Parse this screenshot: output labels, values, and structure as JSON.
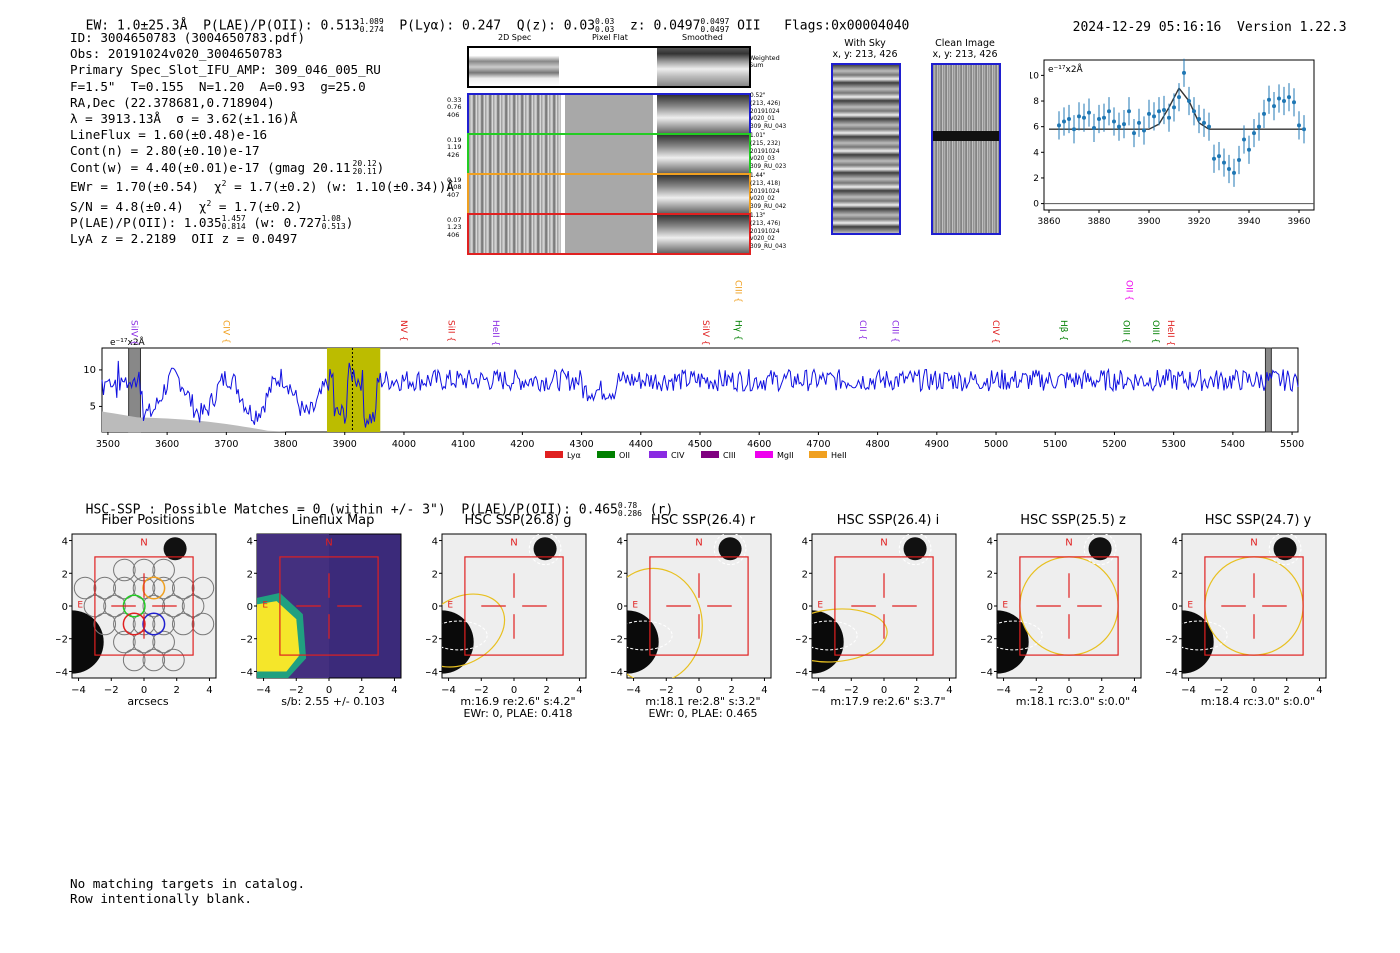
{
  "header": {
    "ew": "EW: 1.0±25.3Å",
    "plae_label": "P(LAE)/P(OII): 0.513",
    "plae_hi": "1.089",
    "plae_lo": "0.274",
    "plya": "P(Lyα): 0.247",
    "qz_label": "Q(z): 0.03",
    "qz_hi": "0.03",
    "qz_lo": "0.03",
    "z_label": "z: 0.0497",
    "z_hi": "0.0497",
    "z_lo": "0.0497",
    "z_line": "OII",
    "flags": "Flags:0x00004040",
    "datetime": "2024-12-29 05:16:16",
    "version": "Version 1.22.3"
  },
  "info": {
    "id": "ID: 3004650783 (3004650783.pdf)",
    "obs": "Obs: 20191024v020_3004650783",
    "primary": "Primary Spec_Slot_IFU_AMP: 309_046_005_RU",
    "params": "F=1.5\"  T=0.155  N=1.20  A=0.93  g=25.0",
    "radec": "RA,Dec (22.378681,0.718904)",
    "lambda": "λ = 3913.13Å  σ = 3.62(±1.16)Å",
    "lineflux": "LineFlux = 1.60(±0.48)e-16",
    "contn": "Cont(n) = 2.80(±0.10)e-17",
    "contw": "Cont(w) = 4.40(±0.01)e-17 (gmag 20.11",
    "gmag_hi": "20.12",
    "gmag_lo": "20.11",
    "ewr": "EWr = 1.70(±0.54)  χ² = 1.7(±0.2)  (w: 1.10(±0.34))Å",
    "ewr_a": "EWr = 1.70(±0.54)",
    "ewr_b": "χ",
    "ewr_c": "2",
    "ewr_d": "(w: 1.10(±0.34))Å",
    "sn": "S/N = 4.8(±0.4)",
    "chi2": "= 1.7(±0.2)",
    "plae": "P(LAE)/P(OII): 1.035",
    "plae_hi": "1.457",
    "plae_lo": "0.814",
    "plae_w": "(w: 0.727",
    "plae_w_hi": "1.08",
    "plae_w_lo": "0.513",
    "lya_z": "LyA z = 2.2189  OII z = 0.0497"
  },
  "cutouts": {
    "col_titles": [
      "2D Spec",
      "Pixel Flat",
      "Smoothed"
    ],
    "weighted_label": "Weighted Sum",
    "rows": [
      {
        "left": [
          "0.33",
          "0.76",
          "406"
        ],
        "right": [
          "0.52\"",
          "(213, 426)",
          "20191024",
          "v020_01",
          "309_RU_043"
        ],
        "color": "#1f1fd0"
      },
      {
        "left": [
          "0.19",
          "1.19",
          "426"
        ],
        "right": [
          "1.01\"",
          "(215, 232)",
          "20191024",
          "v020_03",
          "309_RU_023"
        ],
        "color": "#22cc22"
      },
      {
        "left": [
          "0.19",
          "1.08",
          "407"
        ],
        "right": [
          "1.44\"",
          "(213, 418)",
          "20191024",
          "v020_02",
          "309_RU_042"
        ],
        "color": "#f0a020"
      },
      {
        "left": [
          "0.07",
          "1.23",
          "406"
        ],
        "right": [
          "1.13\"",
          "(213, 476)",
          "20191024",
          "v020_02",
          "309_RU_043"
        ],
        "color": "#e02020"
      }
    ],
    "with_sky_title": "With Sky",
    "with_sky_xy": "x, y: 213, 426",
    "clean_title": "Clean Image",
    "clean_xy": "x, y: 213, 426"
  },
  "zoom_chart": {
    "ylabel": "e⁻¹⁷x2Å",
    "yticks": [
      "0",
      "2",
      "4",
      "6",
      "8",
      "10"
    ],
    "xticks": [
      "3860",
      "3880",
      "3900",
      "3920",
      "3940",
      "3960"
    ]
  },
  "full_spectrum": {
    "ylabel": "e⁻¹⁷x2Å",
    "yticks": [
      "5",
      "10"
    ],
    "xticks": [
      "3500",
      "3600",
      "3700",
      "3800",
      "3900",
      "4000",
      "4100",
      "4200",
      "4300",
      "4400",
      "4500",
      "4600",
      "4700",
      "4800",
      "4900",
      "5000",
      "5100",
      "5200",
      "5300",
      "5400",
      "5500"
    ],
    "line_labels": [
      {
        "name": "SiIV",
        "wave": 3535,
        "color": "#8a2be2",
        "h": "low"
      },
      {
        "name": "CIV",
        "wave": 3690,
        "color": "#f0a020",
        "h": "low"
      },
      {
        "name": "NV",
        "wave": 3990,
        "color": "#e02020",
        "h": "low"
      },
      {
        "name": "SiII",
        "wave": 4070,
        "color": "#e02020",
        "h": "low"
      },
      {
        "name": "HeII",
        "wave": 4145,
        "color": "#8a2be2",
        "h": "low"
      },
      {
        "name": "SiIV",
        "wave": 4500,
        "color": "#e02020",
        "h": "low"
      },
      {
        "name": "CIII",
        "wave": 4555,
        "color": "#f0a020",
        "h": "high"
      },
      {
        "name": "Hγ",
        "wave": 4555,
        "color": "#008000",
        "h": "low"
      },
      {
        "name": "CII",
        "wave": 4765,
        "color": "#8a2be2",
        "h": "low"
      },
      {
        "name": "CIII",
        "wave": 4820,
        "color": "#8a2be2",
        "h": "low"
      },
      {
        "name": "CIV",
        "wave": 4990,
        "color": "#e02020",
        "h": "low"
      },
      {
        "name": "Hβ",
        "wave": 5105,
        "color": "#008000",
        "h": "low"
      },
      {
        "name": "OII",
        "wave": 5215,
        "color": "#ee00ee",
        "h": "high"
      },
      {
        "name": "OIII",
        "wave": 5210,
        "color": "#008000",
        "h": "low"
      },
      {
        "name": "OIII",
        "wave": 5260,
        "color": "#008000",
        "h": "low"
      },
      {
        "name": "HeII",
        "wave": 5285,
        "color": "#e02020",
        "h": "low"
      }
    ],
    "legend": [
      {
        "name": "Lyα",
        "color": "#e02020"
      },
      {
        "name": "OII",
        "color": "#008000"
      },
      {
        "name": "CIV",
        "color": "#8a2be2"
      },
      {
        "name": "CIII",
        "color": "#800080"
      },
      {
        "name": "MgII",
        "color": "#ee00ee"
      },
      {
        "name": "HeII",
        "color": "#f0a020"
      }
    ]
  },
  "hsc": {
    "headline": "HSC-SSP : Possible Matches = 0 (within +/- 3\")  P(LAE)/P(OII): 0.465",
    "hi": "0.78",
    "lo": "0.286",
    "band": "(r)",
    "panels": [
      {
        "title": "Fiber Positions",
        "caption1": "arcsecs",
        "caption2": ""
      },
      {
        "title": "Lineflux Map",
        "caption1": "s/b: 2.55 +/- 0.103",
        "caption2": ""
      },
      {
        "title": "HSC SSP(26.8) g",
        "caption1": "m:16.9  re:2.6\"  s:4.2\"",
        "caption2": "EWr: 0, PLAE: 0.418"
      },
      {
        "title": "HSC SSP(26.4) r",
        "caption1": "m:18.1  re:2.8\"  s:3.2\"",
        "caption2": "EWr: 0, PLAE: 0.465"
      },
      {
        "title": "HSC SSP(26.4) i",
        "caption1": "m:17.9  re:2.6\"  s:3.7\"",
        "caption2": ""
      },
      {
        "title": "HSC SSP(25.5) z",
        "caption1": "m:18.1  rc:3.0\"  s:0.0\"",
        "caption2": ""
      },
      {
        "title": "HSC SSP(24.7) y",
        "caption1": "m:18.4  rc:3.0\"  s:0.0\"",
        "caption2": ""
      }
    ],
    "yticks": [
      "4",
      "2",
      "0",
      "−2",
      "−4"
    ],
    "xticks": [
      "−4",
      "−2",
      "0",
      "2",
      "4"
    ],
    "north": "N",
    "east": "E"
  },
  "footer": {
    "line1": "No matching targets in catalog.",
    "line2": "Row intentionally blank."
  },
  "chart_data": [
    {
      "type": "scatter",
      "title": "",
      "ylabel": "e-17 x2Å",
      "xlim": [
        3858,
        3966
      ],
      "ylim": [
        -0.5,
        11.2
      ],
      "x": [
        3864,
        3866,
        3868,
        3870,
        3872,
        3874,
        3876,
        3878,
        3880,
        3882,
        3884,
        3886,
        3888,
        3890,
        3892,
        3894,
        3896,
        3898,
        3900,
        3902,
        3904,
        3906,
        3908,
        3910,
        3912,
        3914,
        3916,
        3918,
        3920,
        3922,
        3924,
        3926,
        3928,
        3930,
        3932,
        3934,
        3936,
        3938,
        3940,
        3942,
        3944,
        3946,
        3948,
        3950,
        3952,
        3954,
        3956,
        3958,
        3960,
        3962
      ],
      "y": [
        6.1,
        6.4,
        6.6,
        5.8,
        6.8,
        6.7,
        7.1,
        5.9,
        6.6,
        6.7,
        7.2,
        6.4,
        6.0,
        6.2,
        7.2,
        5.5,
        6.3,
        5.7,
        7.0,
        6.8,
        7.2,
        7.3,
        6.7,
        7.5,
        8.3,
        10.2,
        8.0,
        7.2,
        6.6,
        6.3,
        6.0,
        3.5,
        3.7,
        3.2,
        2.7,
        2.4,
        3.4,
        5.0,
        4.2,
        5.5,
        6.0,
        7.0,
        8.1,
        7.6,
        8.2,
        8.0,
        8.3,
        7.9,
        6.1,
        5.8
      ],
      "model_x": [
        3860,
        3900,
        3904,
        3908,
        3912,
        3916,
        3920,
        3924,
        3962
      ],
      "model_y": [
        5.8,
        5.8,
        6.2,
        7.5,
        9.0,
        8.0,
        6.3,
        5.8,
        5.8
      ]
    },
    {
      "type": "line",
      "title": "",
      "ylabel": "e-17 x2Å",
      "xlim": [
        3490,
        5510
      ],
      "ylim": [
        1.5,
        13
      ],
      "highlight_range": [
        3870,
        3960
      ],
      "mask_ranges": [
        [
          3535,
          3555
        ],
        [
          5455,
          5465
        ]
      ],
      "note": "noisy continuum around 8-9 with dip near 3870-3900; series generated from values"
    }
  ]
}
